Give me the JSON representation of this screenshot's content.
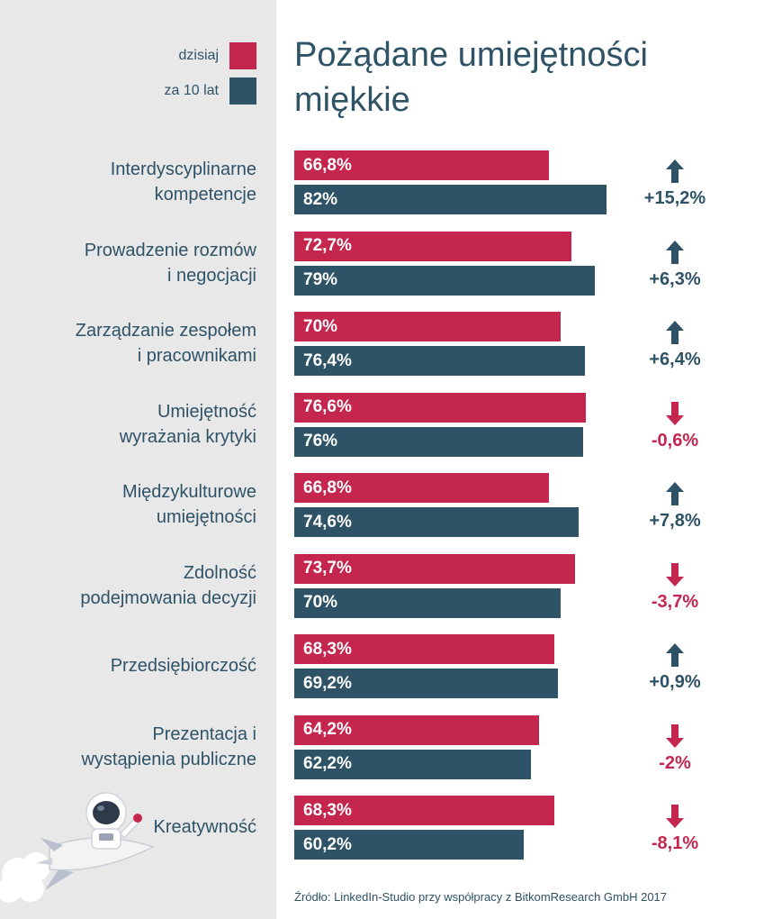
{
  "title": "Pożądane umiejętności miękkie",
  "legend": {
    "today_label": "dzisiaj",
    "future_label": "za 10 lat"
  },
  "colors": {
    "today": "#c4264e",
    "future": "#2e5266",
    "panel": "#e8e8e8",
    "up": "#2e5266",
    "down": "#c4264e"
  },
  "source": "Źródło: LinkedIn-Studio przy współpracy z BitkomResearch GmbH 2017",
  "chart_data": {
    "type": "bar",
    "orientation": "horizontal",
    "grid": false,
    "legend_position": "top-left",
    "xlim": [
      0,
      100
    ],
    "categories": [
      [
        "Interdyscyplinarne",
        "kompetencje"
      ],
      [
        "Prowadzenie rozmów",
        "i negocjacji"
      ],
      [
        "Zarządzanie zespołem",
        "i pracownikami"
      ],
      [
        "Umiejętność",
        "wyrażania krytyki"
      ],
      [
        "Międzykulturowe",
        "umiejętności"
      ],
      [
        "Zdolność",
        "podejmowania decyzji"
      ],
      [
        "Przedsiębiorczość"
      ],
      [
        "Prezentacja i",
        "wystąpienia publiczne"
      ],
      [
        "Kreatywność"
      ]
    ],
    "series": [
      {
        "name": "dzisiaj",
        "values": [
          66.8,
          72.7,
          70,
          76.6,
          66.8,
          73.7,
          68.3,
          64.2,
          68.3
        ],
        "labels": [
          "66,8%",
          "72,7%",
          "70%",
          "76,6%",
          "66,8%",
          "73,7%",
          "68,3%",
          "64,2%",
          "68,3%"
        ]
      },
      {
        "name": "za 10 lat",
        "values": [
          82,
          79,
          76.4,
          76,
          74.6,
          70,
          69.2,
          62.2,
          60.2
        ],
        "labels": [
          "82%",
          "79%",
          "76,4%",
          "76%",
          "74,6%",
          "70%",
          "69,2%",
          "62,2%",
          "60,2%"
        ]
      }
    ],
    "changes": [
      {
        "label": "+15,2%",
        "direction": "up"
      },
      {
        "label": "+6,3%",
        "direction": "up"
      },
      {
        "label": "+6,4%",
        "direction": "up"
      },
      {
        "label": "-0,6%",
        "direction": "down"
      },
      {
        "label": "+7,8%",
        "direction": "up"
      },
      {
        "label": "-3,7%",
        "direction": "down"
      },
      {
        "label": "+0,9%",
        "direction": "up"
      },
      {
        "label": "-2%",
        "direction": "down"
      },
      {
        "label": "-8,1%",
        "direction": "down"
      }
    ]
  }
}
